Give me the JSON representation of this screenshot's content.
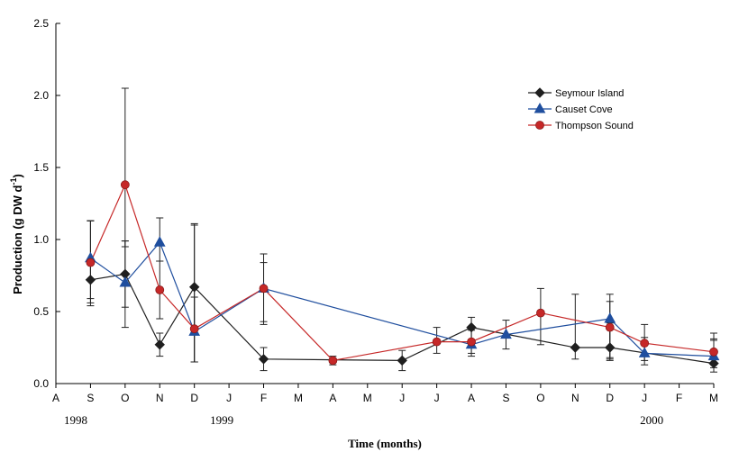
{
  "chart_data": {
    "type": "line",
    "title": "",
    "xlabel": "Time (months)",
    "ylabel": "Production (g DW d",
    "ylabel_superscript": "-1",
    "ylabel_close": ")",
    "ylim": [
      0,
      2.5
    ],
    "yticks": [
      "0.0",
      "0.5",
      "1.0",
      "1.5",
      "2.0",
      "2.5"
    ],
    "ytick_values": [
      0,
      0.5,
      1.0,
      1.5,
      2.0,
      2.5
    ],
    "xticks": [
      "A",
      "S",
      "O",
      "N",
      "D",
      "J",
      "F",
      "M",
      "A",
      "M",
      "J",
      "J",
      "A",
      "S",
      "O",
      "N",
      "D",
      "J",
      "F",
      "M"
    ],
    "years": [
      {
        "label": "1998",
        "at": 0
      },
      {
        "label": "1999",
        "at": 5
      },
      {
        "label": "2000",
        "at": 17
      }
    ],
    "legend_position": "top-right",
    "series": [
      {
        "name": "Seymour Island",
        "color": "#1f1f1f",
        "marker": "diamond",
        "x": [
          1,
          2,
          3,
          4,
          6,
          10,
          12,
          15,
          16,
          19
        ],
        "values": [
          0.72,
          0.76,
          0.27,
          0.67,
          0.17,
          0.16,
          0.39,
          0.25,
          0.25,
          0.14
        ],
        "err_low": [
          0.18,
          0.37,
          0.08,
          0.52,
          0.08,
          0.07,
          0.1,
          0.08,
          0.09,
          0.06
        ],
        "err_high": [
          0.41,
          0.23,
          0.08,
          0.44,
          0.08,
          0.07,
          0.07,
          0.37,
          0.17,
          0.17
        ]
      },
      {
        "name": "Causet Cove",
        "color": "#1f4e9e",
        "marker": "triangle",
        "x": [
          1,
          2,
          3,
          4,
          6,
          12,
          13,
          16,
          17,
          19
        ],
        "values": [
          0.87,
          0.7,
          0.98,
          0.36,
          0.66,
          0.27,
          0.34,
          0.45,
          0.21,
          0.19
        ],
        "err_low": [
          0.28,
          0.17,
          0.13,
          0.21,
          0.25,
          0.08,
          0.1,
          0.28,
          0.08,
          0.08
        ],
        "err_high": [
          0.26,
          0.29,
          0.17,
          0.24,
          0.18,
          0.1,
          0.1,
          0.17,
          0.11,
          0.11
        ]
      },
      {
        "name": "Thompson Sound",
        "color": "#c62828",
        "marker": "circle",
        "x": [
          1,
          2,
          3,
          4,
          6,
          8,
          11,
          12,
          14,
          16,
          17,
          19
        ],
        "values": [
          0.84,
          1.38,
          0.65,
          0.38,
          0.66,
          0.16,
          0.29,
          0.29,
          0.49,
          0.39,
          0.28,
          0.22
        ],
        "err_low": [
          0.28,
          0.43,
          0.2,
          0.23,
          0.23,
          0.03,
          0.08,
          0.08,
          0.22,
          0.21,
          0.12,
          0.09
        ],
        "err_high": [
          0.29,
          0.67,
          0.2,
          0.72,
          0.24,
          0.03,
          0.1,
          0.1,
          0.17,
          0.18,
          0.13,
          0.13
        ]
      }
    ]
  }
}
